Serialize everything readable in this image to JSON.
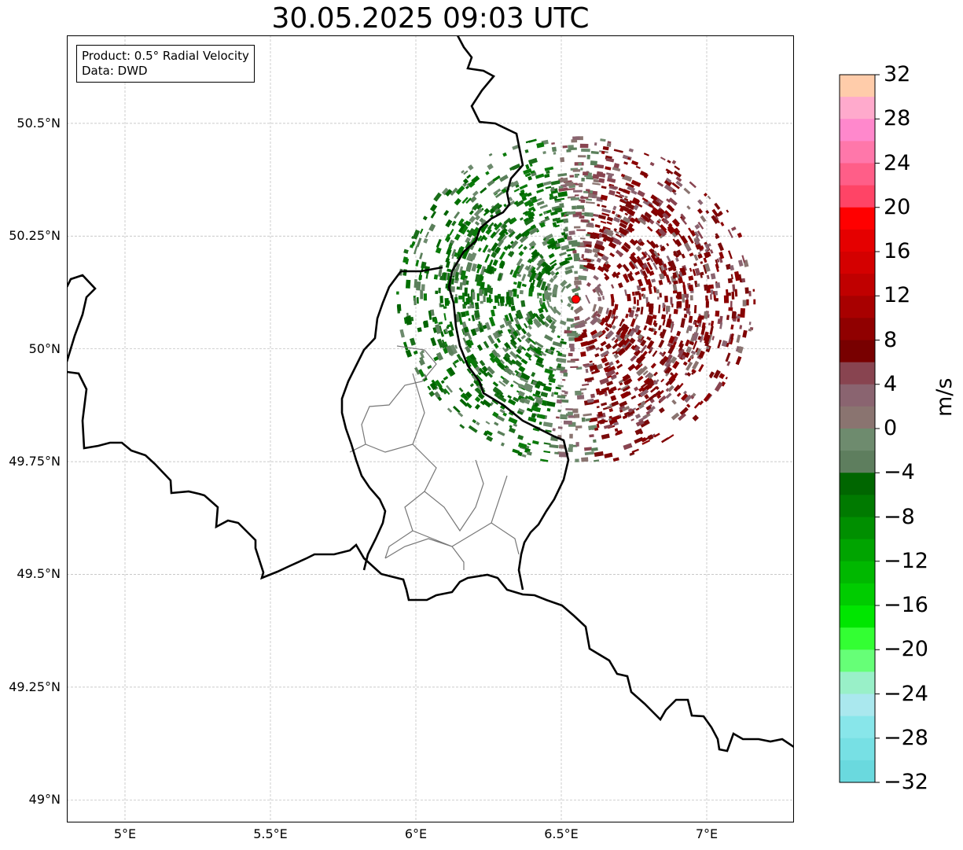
{
  "title": "30.05.2025 09:03 UTC",
  "info_box": {
    "product": "Product: 0.5° Radial Velocity",
    "data": "Data: DWD"
  },
  "map": {
    "lon_range": [
      4.8,
      7.3
    ],
    "lat_range": [
      48.95,
      50.695
    ],
    "gridlines": true,
    "lat_ticks": [
      {
        "value": 50.5,
        "label": "50.5°N"
      },
      {
        "value": 50.25,
        "label": "50.25°N"
      },
      {
        "value": 50.0,
        "label": "50°N"
      },
      {
        "value": 49.75,
        "label": "49.75°N"
      },
      {
        "value": 49.5,
        "label": "49.5°N"
      },
      {
        "value": 49.25,
        "label": "49.25°N"
      },
      {
        "value": 49.0,
        "label": "49°N"
      }
    ],
    "lon_ticks": [
      {
        "value": 5.0,
        "label": "5°E"
      },
      {
        "value": 5.5,
        "label": "5.5°E"
      },
      {
        "value": 6.0,
        "label": "6°E"
      },
      {
        "value": 6.5,
        "label": "6.5°E"
      },
      {
        "value": 7.0,
        "label": "7°E"
      }
    ],
    "radar_site": {
      "lon": 6.55,
      "lat": 50.11,
      "color": "#ff0000"
    },
    "coverage_radius_deg": 0.62,
    "velocity_field": {
      "approaching_side": "west",
      "receding_side": "east",
      "note_colors": {
        "strong_in": "#006400",
        "weak_in": "#5f7f5f",
        "weak_out": "#8b6070",
        "strong_out": "#800000"
      }
    }
  },
  "colorbar": {
    "label": "m/s",
    "vmin": -32,
    "vmax": 32,
    "step": 4,
    "tick_labels": [
      "32",
      "28",
      "24",
      "20",
      "16",
      "12",
      "8",
      "4",
      "0",
      "−4",
      "−8",
      "−12",
      "−16",
      "−20",
      "−24",
      "−28",
      "−32"
    ],
    "colors_top_to_bottom": [
      "#ffccaa",
      "#ffaacc",
      "#ff88cc",
      "#ff77aa",
      "#ff5e88",
      "#ff4466",
      "#ff0000",
      "#e50000",
      "#d40000",
      "#c00000",
      "#a80000",
      "#900000",
      "#780000",
      "#884450",
      "#8a6470",
      "#8a7470",
      "#6e8b6e",
      "#5e7e5e",
      "#006600",
      "#007a00",
      "#008f00",
      "#00a400",
      "#00b800",
      "#00cc00",
      "#00e600",
      "#33ff33",
      "#66ff77",
      "#99f0c8",
      "#aae8ee",
      "#88e6ea",
      "#77e0e4",
      "#6ad9de"
    ]
  }
}
